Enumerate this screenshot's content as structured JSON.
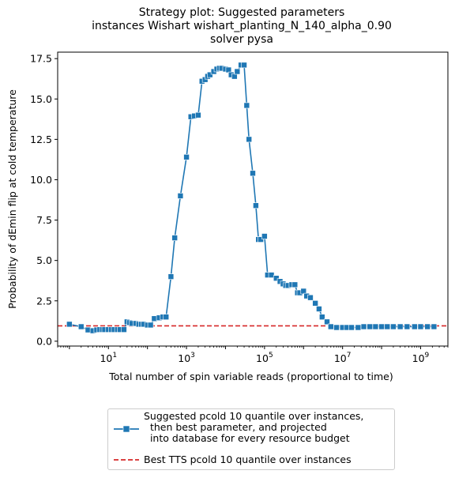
{
  "chart_data": {
    "type": "line",
    "title_lines": [
      "Strategy plot: Suggested parameters",
      "instances Wishart wishart_planting_N_140_alpha_0.90",
      "solver pysa"
    ],
    "xlabel": "Total number of spin variable reads (proportional to time)",
    "ylabel": "Probability of dEmin flip at cold temperature",
    "xscale": "log",
    "xlim": [
      0.5,
      5000000000
    ],
    "ylim": [
      -0.3,
      17.9
    ],
    "xticks": [
      {
        "value": 10,
        "base": "10",
        "exp": "1"
      },
      {
        "value": 1000,
        "base": "10",
        "exp": "3"
      },
      {
        "value": 100000,
        "base": "10",
        "exp": "5"
      },
      {
        "value": 10000000,
        "base": "10",
        "exp": "7"
      },
      {
        "value": 1000000000,
        "base": "10",
        "exp": "9"
      }
    ],
    "yticks": [
      "0.0",
      "2.5",
      "5.0",
      "7.5",
      "10.0",
      "12.5",
      "15.0",
      "17.5"
    ],
    "yticks_values": [
      0,
      2.5,
      5,
      7.5,
      10,
      12.5,
      15,
      17.5
    ],
    "grid": false,
    "legend_position": "below",
    "series": [
      {
        "name": "Suggested pcold 10 quantile over instances,\n  then best parameter, and projected\n  into database for every resource budget",
        "color": "#1f77b4",
        "marker": "square",
        "x": [
          1,
          2,
          3,
          4,
          5,
          6,
          7,
          8,
          10,
          12,
          14,
          17,
          20,
          25,
          30,
          35,
          40,
          50,
          60,
          70,
          80,
          100,
          120,
          150,
          200,
          250,
          300,
          400,
          500,
          700,
          1000,
          1300,
          1600,
          2000,
          2500,
          3000,
          3500,
          4000,
          5000,
          6000,
          7000,
          8000,
          10000,
          12000,
          14000,
          17000,
          20000,
          25000,
          30000,
          35000,
          40000,
          50000,
          60000,
          70000,
          80000,
          100000,
          120000,
          150000,
          200000,
          250000,
          300000,
          350000,
          400000,
          500000,
          600000,
          700000,
          800000,
          1000000,
          1200000,
          1500000,
          2000000,
          2500000,
          3000000,
          4000000,
          5000000,
          7000000,
          10000000,
          13000000,
          17000000,
          25000000,
          35000000,
          50000000,
          70000000,
          100000000,
          140000000,
          200000000,
          300000000,
          450000000,
          700000000,
          1000000000,
          1500000000,
          2200000000
        ],
        "y": [
          1.05,
          0.9,
          0.7,
          0.65,
          0.7,
          0.72,
          0.72,
          0.72,
          0.72,
          0.72,
          0.72,
          0.72,
          0.72,
          0.72,
          1.2,
          1.15,
          1.1,
          1.1,
          1.05,
          1.05,
          1.05,
          1.0,
          1.0,
          1.4,
          1.45,
          1.5,
          1.5,
          4.0,
          6.4,
          9.0,
          11.4,
          13.9,
          13.95,
          14.0,
          16.1,
          16.2,
          16.4,
          16.5,
          16.7,
          16.85,
          16.9,
          16.9,
          16.85,
          16.8,
          16.5,
          16.4,
          16.7,
          17.1,
          17.1,
          14.6,
          12.5,
          10.4,
          8.4,
          6.3,
          6.3,
          6.5,
          4.1,
          4.1,
          3.9,
          3.7,
          3.55,
          3.45,
          3.45,
          3.5,
          3.5,
          3.0,
          3.0,
          3.1,
          2.8,
          2.7,
          2.35,
          2.0,
          1.5,
          1.2,
          0.9,
          0.85,
          0.85,
          0.85,
          0.85,
          0.85,
          0.9,
          0.9,
          0.9,
          0.9,
          0.9,
          0.9,
          0.9,
          0.9,
          0.9,
          0.9,
          0.9,
          0.9
        ]
      },
      {
        "name": "Best TTS pcold 10 quantile over instances",
        "color": "#d62728",
        "linestyle": "dashed",
        "y": 0.95
      }
    ]
  }
}
